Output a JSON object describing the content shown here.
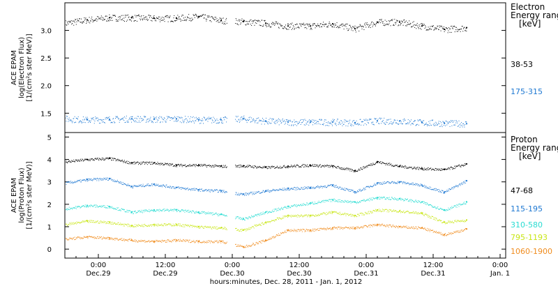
{
  "xlabel": "hours:minutes, Dec. 28, 2011 - Jan. 1, 2012",
  "x_ticks": [
    {
      "hour": 6,
      "time": "0:00",
      "date": "Dec.29"
    },
    {
      "hour": 18,
      "time": "12:00",
      "date": "Dec.29"
    },
    {
      "hour": 30,
      "time": "0:00",
      "date": "Dec.30"
    },
    {
      "hour": 42,
      "time": "12:00",
      "date": "Dec.30"
    },
    {
      "hour": 54,
      "time": "0:00",
      "date": "Dec.31"
    },
    {
      "hour": 66,
      "time": "12:00",
      "date": "Dec.31"
    },
    {
      "hour": 78,
      "time": "0:00",
      "date": "Jan. 1"
    }
  ],
  "chart_data": [
    {
      "type": "scatter",
      "name": "electron-panel",
      "xlim": [
        0,
        79
      ],
      "ylim": [
        1.15,
        3.5
      ],
      "yticks": [
        1.5,
        2.0,
        2.5,
        3.0
      ],
      "ytick_labels": [
        "1.5",
        "2.0",
        "2.5",
        "3.0"
      ],
      "ylabel_lines": [
        "ACE EPAM",
        "log(Electron Flux)",
        "[1/(cm²s ster MeV)]"
      ],
      "legend_title_lines": [
        "Electron",
        "Energy ranges",
        "[keV]"
      ],
      "series": [
        {
          "name": "38-53",
          "color": "#000000",
          "x": [
            0,
            4,
            8,
            12,
            16,
            20,
            24,
            28,
            32,
            36,
            40,
            44,
            48,
            52,
            56,
            60,
            64,
            68,
            72
          ],
          "values": [
            3.13,
            3.19,
            3.23,
            3.23,
            3.22,
            3.22,
            3.25,
            3.18,
            3.16,
            3.13,
            3.08,
            3.08,
            3.12,
            3.03,
            3.15,
            3.15,
            3.08,
            3.02,
            3.05
          ]
        },
        {
          "name": "175-315",
          "color": "#1e78d2",
          "x": [
            0,
            4,
            8,
            12,
            16,
            20,
            24,
            28,
            32,
            36,
            40,
            44,
            48,
            52,
            56,
            60,
            64,
            68,
            72
          ],
          "values": [
            1.4,
            1.38,
            1.39,
            1.4,
            1.39,
            1.4,
            1.38,
            1.38,
            1.4,
            1.36,
            1.34,
            1.34,
            1.34,
            1.33,
            1.36,
            1.36,
            1.33,
            1.32,
            1.31
          ]
        }
      ]
    },
    {
      "type": "scatter",
      "name": "proton-panel",
      "xlim": [
        0,
        79
      ],
      "ylim": [
        -0.4,
        5.2
      ],
      "yticks": [
        0,
        1,
        2,
        3,
        4,
        5
      ],
      "ytick_labels": [
        "0",
        "1",
        "2",
        "3",
        "4",
        "5"
      ],
      "ylabel_lines": [
        "ACE EPAM",
        "log(Proton Flux)",
        "[1/(cm²s ster MeV)]"
      ],
      "legend_title_lines": [
        "Proton",
        "Energy ranges",
        "[keV]"
      ],
      "series": [
        {
          "name": "47-68",
          "color": "#000000",
          "x": [
            0,
            4,
            8,
            12,
            16,
            20,
            24,
            28,
            32,
            36,
            40,
            44,
            48,
            52,
            56,
            60,
            64,
            68,
            72
          ],
          "values": [
            3.9,
            4.0,
            4.05,
            3.85,
            3.85,
            3.75,
            3.75,
            3.7,
            3.72,
            3.65,
            3.7,
            3.75,
            3.7,
            3.5,
            3.9,
            3.7,
            3.6,
            3.55,
            3.8
          ]
        },
        {
          "name": "115-195",
          "color": "#1e78d2",
          "x": [
            0,
            4,
            8,
            12,
            16,
            20,
            24,
            28,
            32,
            36,
            40,
            44,
            48,
            52,
            56,
            60,
            64,
            68,
            72
          ],
          "values": [
            2.95,
            3.1,
            3.15,
            2.8,
            2.9,
            2.75,
            2.65,
            2.6,
            2.45,
            2.6,
            2.7,
            2.75,
            2.85,
            2.55,
            2.95,
            3.0,
            2.85,
            2.55,
            3.05
          ]
        },
        {
          "name": "310-580",
          "color": "#28dcd2",
          "x": [
            0,
            4,
            8,
            12,
            16,
            20,
            24,
            28,
            32,
            36,
            40,
            44,
            48,
            52,
            56,
            60,
            64,
            68,
            72
          ],
          "values": [
            1.8,
            1.95,
            1.9,
            1.65,
            1.75,
            1.75,
            1.65,
            1.55,
            1.35,
            1.65,
            1.9,
            2.05,
            2.2,
            2.1,
            2.3,
            2.25,
            2.1,
            1.75,
            2.1
          ]
        },
        {
          "name": "795-1193",
          "color": "#c8e614",
          "x": [
            0,
            4,
            8,
            12,
            16,
            20,
            24,
            28,
            32,
            36,
            40,
            44,
            48,
            52,
            56,
            60,
            64,
            68,
            72
          ],
          "values": [
            1.1,
            1.25,
            1.2,
            1.05,
            1.1,
            1.1,
            1.0,
            0.95,
            0.85,
            1.2,
            1.5,
            1.5,
            1.65,
            1.5,
            1.75,
            1.7,
            1.6,
            1.2,
            1.3
          ]
        },
        {
          "name": "1060-1900",
          "color": "#f08c1e",
          "x": [
            0,
            4,
            8,
            12,
            16,
            20,
            24,
            28,
            32,
            36,
            40,
            44,
            48,
            52,
            56,
            60,
            64,
            68,
            72
          ],
          "values": [
            0.45,
            0.55,
            0.5,
            0.4,
            0.35,
            0.4,
            0.35,
            0.35,
            0.1,
            0.4,
            0.85,
            0.85,
            0.95,
            0.95,
            1.1,
            1.0,
            0.95,
            0.65,
            0.9
          ]
        }
      ]
    }
  ]
}
